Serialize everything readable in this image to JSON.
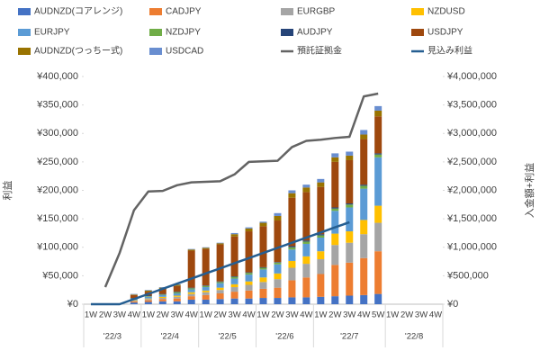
{
  "chart_data": {
    "type": "bar",
    "stacked": true,
    "grid": false,
    "legend": "top",
    "categories": [
      "1W",
      "2W",
      "3W",
      "4W",
      "1W",
      "2W",
      "3W",
      "4W",
      "1W",
      "2W",
      "3W",
      "4W",
      "1W",
      "2W",
      "3W",
      "4W",
      "1W",
      "2W",
      "3W",
      "4W",
      "5W",
      "1W",
      "2W",
      "3W",
      "4W"
    ],
    "category_groups": [
      "'22/3",
      null,
      null,
      null,
      "'22/4",
      null,
      null,
      null,
      "'22/5",
      null,
      null,
      null,
      "'22/6",
      null,
      null,
      null,
      "'22/7",
      null,
      null,
      null,
      null,
      "'22/8",
      null,
      null,
      null
    ],
    "ylabel": "利益",
    "y2label": "入金額+利益",
    "ylim": [
      0,
      400000
    ],
    "yticks": [
      {
        "value": 0,
        "label": "¥0"
      },
      {
        "value": 50000,
        "label": "¥50,000"
      },
      {
        "value": 100000,
        "label": "¥100,000"
      },
      {
        "value": 150000,
        "label": "¥150,000"
      },
      {
        "value": 200000,
        "label": "¥200,000"
      },
      {
        "value": 250000,
        "label": "¥250,000"
      },
      {
        "value": 300000,
        "label": "¥300,000"
      },
      {
        "value": 350000,
        "label": "¥350,000"
      },
      {
        "value": 400000,
        "label": "¥400,000"
      }
    ],
    "y2lim": [
      0,
      4000000
    ],
    "y2ticks": [
      {
        "value": 0,
        "label": "¥0"
      },
      {
        "value": 500000,
        "label": "¥500,000"
      },
      {
        "value": 1000000,
        "label": "¥1,000,000"
      },
      {
        "value": 1500000,
        "label": "¥1,500,000"
      },
      {
        "value": 2000000,
        "label": "¥2,000,000"
      },
      {
        "value": 2500000,
        "label": "¥2,500,000"
      },
      {
        "value": 3000000,
        "label": "¥3,000,000"
      },
      {
        "value": 3500000,
        "label": "¥3,500,000"
      },
      {
        "value": 4000000,
        "label": "¥4,000,000"
      }
    ],
    "series": [
      {
        "name": "AUDNZD(コアレンジ)",
        "type": "bar",
        "color": "#4472c4",
        "values": [
          null,
          null,
          null,
          3000,
          4000,
          5000,
          5000,
          8000,
          8000,
          9000,
          10000,
          10000,
          11000,
          11000,
          12000,
          12000,
          13000,
          14000,
          15000,
          16000,
          18000,
          null,
          null,
          null,
          null
        ]
      },
      {
        "name": "CADJPY",
        "type": "bar",
        "color": "#ed7d31",
        "values": [
          null,
          null,
          null,
          2000,
          3000,
          4000,
          5000,
          6000,
          8000,
          10000,
          12000,
          14000,
          16000,
          18000,
          30000,
          35000,
          40000,
          55000,
          58000,
          65000,
          75000,
          null,
          null,
          null,
          null
        ]
      },
      {
        "name": "EURGBP",
        "type": "bar",
        "color": "#a5a5a5",
        "values": [
          null,
          null,
          null,
          1000,
          2000,
          2000,
          3000,
          4000,
          5000,
          6000,
          8000,
          10000,
          12000,
          15000,
          22000,
          24000,
          26000,
          35000,
          35000,
          42000,
          50000,
          null,
          null,
          null,
          null
        ]
      },
      {
        "name": "NZDUSD",
        "type": "bar",
        "color": "#ffc000",
        "values": [
          null,
          null,
          null,
          1000,
          1000,
          2000,
          2000,
          3000,
          3000,
          4000,
          5000,
          6000,
          8000,
          10000,
          12000,
          13000,
          14000,
          20000,
          20000,
          25000,
          30000,
          null,
          null,
          null,
          null
        ]
      },
      {
        "name": "EURJPY",
        "type": "bar",
        "color": "#5b9bd5",
        "values": [
          null,
          null,
          null,
          2000,
          3000,
          3000,
          4000,
          5000,
          6000,
          8000,
          10000,
          12000,
          14000,
          16000,
          20000,
          22000,
          24000,
          40000,
          42000,
          55000,
          85000,
          null,
          null,
          null,
          null
        ]
      },
      {
        "name": "NZDJPY",
        "type": "bar",
        "color": "#70ad47",
        "values": [
          null,
          null,
          null,
          1000,
          1000,
          1000,
          2000,
          2000,
          2000,
          2000,
          3000,
          3000,
          3000,
          3000,
          4000,
          4000,
          4000,
          4000,
          5000,
          5000,
          5000,
          null,
          null,
          null,
          null
        ]
      },
      {
        "name": "AUDJPY",
        "type": "bar",
        "color": "#264478",
        "values": [
          null,
          null,
          null,
          1000,
          1000,
          1000,
          1000,
          1000,
          1000,
          1000,
          1000,
          1000,
          1000,
          1000,
          2000,
          2000,
          2000,
          2000,
          2000,
          2000,
          2000,
          null,
          null,
          null,
          null
        ]
      },
      {
        "name": "USDJPY",
        "type": "bar",
        "color": "#9e480e",
        "values": [
          null,
          null,
          null,
          5000,
          7000,
          9000,
          10000,
          65000,
          64000,
          65000,
          70000,
          72000,
          72000,
          73000,
          85000,
          85000,
          83000,
          80000,
          76000,
          80000,
          65000,
          null,
          null,
          null,
          null
        ]
      },
      {
        "name": "AUDNZD(つっちー式)",
        "type": "bar",
        "color": "#997300",
        "values": [
          null,
          null,
          null,
          1000,
          2000,
          2000,
          2000,
          2000,
          2000,
          2000,
          4000,
          5000,
          6000,
          8000,
          8000,
          8000,
          8000,
          8000,
          8000,
          8000,
          10000,
          null,
          null,
          null,
          null
        ]
      },
      {
        "name": "USDCAD",
        "type": "bar",
        "color": "#698ed0",
        "values": [
          null,
          null,
          null,
          1000,
          1000,
          1000,
          1000,
          1000,
          1000,
          1000,
          2000,
          2000,
          2000,
          5000,
          5000,
          5000,
          6000,
          7000,
          7000,
          8000,
          8000,
          null,
          null,
          null,
          null
        ]
      },
      {
        "name": "預託証拠金",
        "type": "line",
        "axis": "y2",
        "color": "#636363",
        "values": [
          null,
          300000,
          900000,
          1650000,
          1980000,
          1990000,
          2090000,
          2140000,
          2150000,
          2160000,
          2280000,
          2500000,
          2510000,
          2520000,
          2760000,
          2870000,
          2890000,
          2920000,
          2940000,
          3650000,
          3700000,
          null,
          null,
          null,
          null
        ]
      },
      {
        "name": "見込み利益",
        "type": "line",
        "color": "#255e91",
        "values": [
          0,
          0,
          0,
          9000,
          18000,
          27000,
          36000,
          45000,
          54000,
          63000,
          72000,
          81000,
          90000,
          99000,
          108000,
          117000,
          126000,
          135000,
          144000,
          null,
          null,
          null,
          null,
          null,
          null
        ]
      }
    ]
  }
}
